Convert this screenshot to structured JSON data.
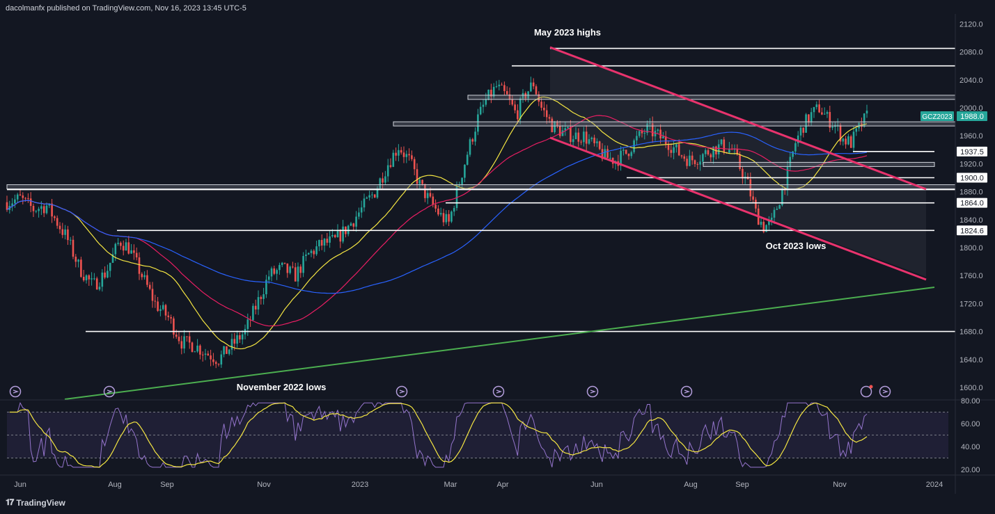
{
  "header": {
    "publisher": "dacolmanfx published on TradingView.com, Nov 16, 2023 13:45 UTC-5"
  },
  "footer": {
    "brand": "TradingView"
  },
  "colors": {
    "background": "#131722",
    "up": "#26a69a",
    "down": "#ef5350",
    "sma_fast": "#f5e642",
    "sma_mid": "#e91e63",
    "sma_slow": "#2962ff",
    "channel": "#e8336d",
    "trendline": "#4caf50",
    "rsi": "#9575cd",
    "rsi_ma": "#f5e642"
  },
  "chart_data": {
    "type": "candlestick",
    "symbol": "GCZ2023",
    "last_price": "1988.0",
    "price_axis": {
      "range": [
        1590,
        2140
      ],
      "ticks": [
        "2120.0",
        "2080.0",
        "2040.0",
        "2000.0",
        "1960.0",
        "1920.0",
        "1880.0",
        "1840.0",
        "1800.0",
        "1760.0",
        "1720.0",
        "1680.0",
        "1640.0",
        "1600.0"
      ]
    },
    "time_axis": {
      "labels": [
        "Jun",
        "Aug",
        "Sep",
        "Nov",
        "2023",
        "Mar",
        "Apr",
        "Jun",
        "Aug",
        "Sep",
        "Nov",
        "2024"
      ]
    },
    "price_labels": [
      "1937.5",
      "1900.0",
      "1864.0",
      "1824.6"
    ],
    "annotations": [
      "May 2023 highs",
      "Oct 2023 lows",
      "November 2022 lows"
    ],
    "horizontal_levels": [
      2085,
      2060,
      2015,
      1977,
      1937.5,
      1919,
      1900,
      1887,
      1883,
      1864,
      1824.6,
      1680
    ],
    "rsi_panel": {
      "range": [
        15,
        85
      ],
      "ticks": [
        "80.00",
        "60.00",
        "40.00",
        "20.00"
      ],
      "band_levels": [
        70,
        50,
        30
      ]
    }
  }
}
